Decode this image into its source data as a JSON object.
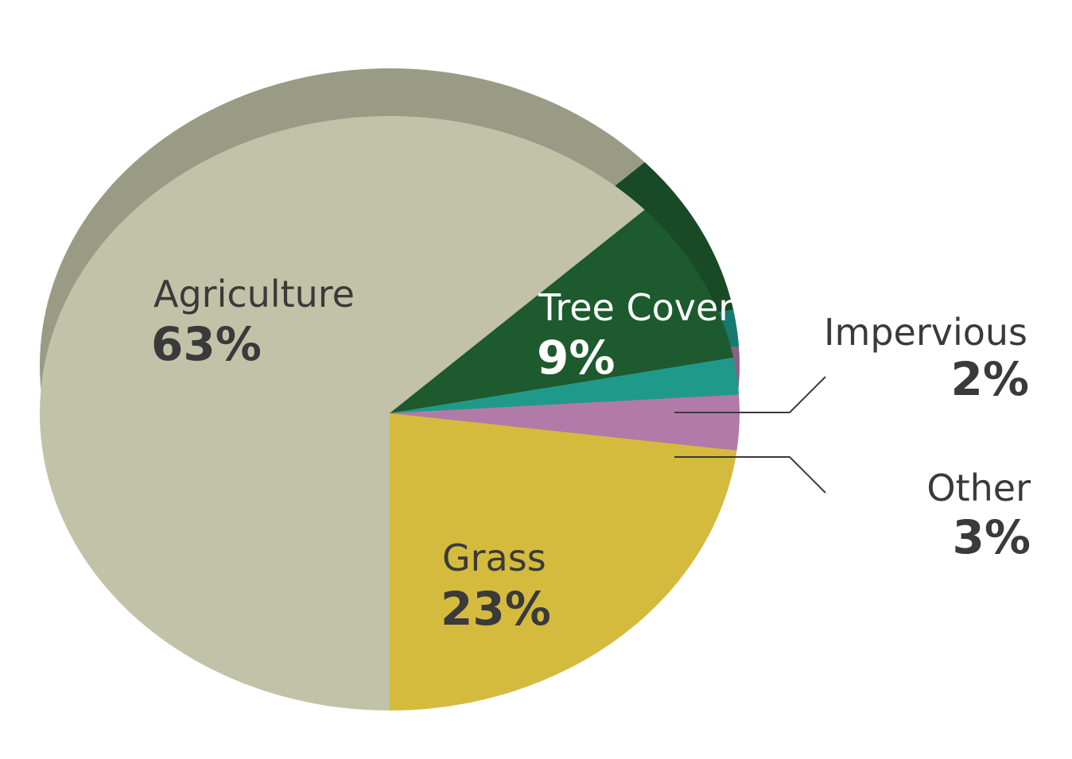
{
  "chart_data": {
    "type": "pie",
    "title": "",
    "slices": [
      {
        "label": "Agriculture",
        "value": 63,
        "value_label": "63%",
        "color": "#c2c2a8",
        "side_color": "#9a9b85",
        "text_color": "#3a3a3a"
      },
      {
        "label": "Tree Cover",
        "value": 9,
        "value_label": "9%",
        "color": "#1d5a2e",
        "side_color": "#174a25",
        "text_color": "#ffffff"
      },
      {
        "label": "Impervious",
        "value": 2,
        "value_label": "2%",
        "color": "#1f9a8a",
        "side_color": "#177a6e",
        "text_color": "#3a3a3a"
      },
      {
        "label": "Other",
        "value": 3,
        "value_label": "3%",
        "color": "#b27aa8",
        "side_color": "#8e5f86",
        "text_color": "#3a3a3a"
      },
      {
        "label": "Grass",
        "value": 23,
        "value_label": "23%",
        "color": "#d4bb3e",
        "side_color": "#a89330",
        "text_color": "#3a3a3a"
      }
    ],
    "legend": "none"
  }
}
